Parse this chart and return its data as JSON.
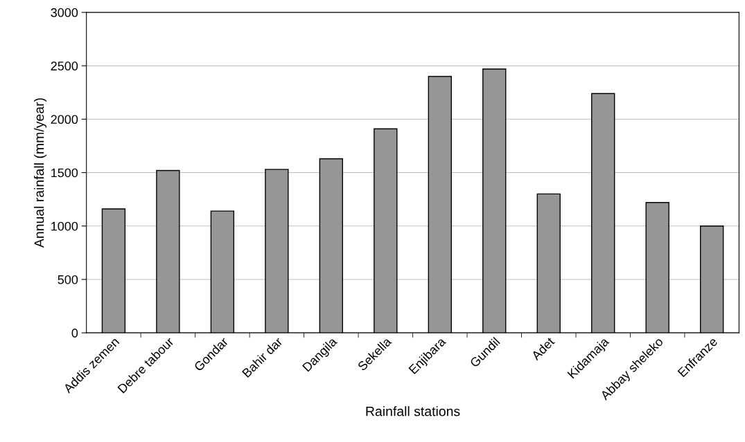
{
  "chart_data": {
    "type": "bar",
    "xlabel": "Rainfall stations",
    "ylabel": "Annual rainfall (mm/year)",
    "categories": [
      "Addis zemen",
      "Debre tabour",
      "Gondar",
      "Bahir dar",
      "Dangila",
      "Sekella",
      "Enjibara",
      "Gundil",
      "Adet",
      "Kidamaja",
      "Abbay sheleko",
      "Enfranze"
    ],
    "values": [
      1160,
      1520,
      1140,
      1530,
      1630,
      1910,
      2400,
      2470,
      1300,
      2240,
      1220,
      1000
    ],
    "color": "#969696",
    "ylim": [
      0,
      3000
    ],
    "yticks": [
      0,
      500,
      1000,
      1500,
      2000,
      2500,
      3000
    ],
    "grid": "y"
  }
}
